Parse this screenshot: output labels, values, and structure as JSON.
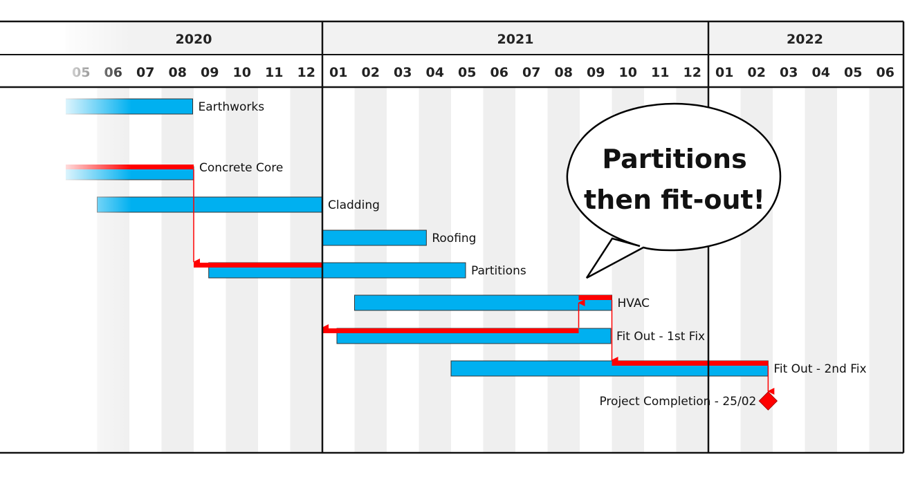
{
  "chart_data": {
    "type": "gantt",
    "years": [
      {
        "label": "2020",
        "start": "2020-05",
        "end": "2020-12"
      },
      {
        "label": "2021",
        "start": "2021-01",
        "end": "2021-12"
      },
      {
        "label": "2022",
        "start": "2022-01",
        "end": "2022-06"
      }
    ],
    "months": [
      "05",
      "06",
      "07",
      "08",
      "09",
      "10",
      "11",
      "12",
      "01",
      "02",
      "03",
      "04",
      "05",
      "06",
      "07",
      "08",
      "09",
      "10",
      "11",
      "12",
      "01",
      "02",
      "03",
      "04",
      "05",
      "06"
    ],
    "tasks": [
      {
        "name": "Earthworks",
        "start": "2020-04-15",
        "end": "2020-08-31"
      },
      {
        "name": "Concrete Core",
        "start": "2020-04-15",
        "end": "2020-09-01",
        "critical": true
      },
      {
        "name": "Cladding",
        "start": "2020-06-01",
        "end": "2021-01-01"
      },
      {
        "name": "Roofing",
        "start": "2021-01-01",
        "end": "2021-04-08"
      },
      {
        "name": "Partitions",
        "start": "2020-09-15",
        "end": "2021-05-15",
        "critical": true
      },
      {
        "name": "HVAC",
        "start": "2021-02-01",
        "end": "2021-10-01",
        "critical": true
      },
      {
        "name": "Fit Out - 1st Fix",
        "start": "2021-01-15",
        "end": "2021-09-30",
        "critical": true
      },
      {
        "name": "Fit Out - 2nd Fix",
        "start": "2021-05-01",
        "end": "2022-02-25",
        "critical": true
      }
    ],
    "critical_path": [
      {
        "task": "Concrete Core",
        "start": "2020-04-15",
        "end": "2020-09-01"
      },
      {
        "task": "Partitions",
        "start": "2020-09-01",
        "end": "2021-01-01"
      },
      {
        "task": "Fit Out - 1st Fix",
        "start": "2021-01-01",
        "end": "2021-08-31"
      },
      {
        "task": "HVAC",
        "start": "2021-08-31",
        "end": "2021-10-01"
      },
      {
        "task": "Fit Out - 2nd Fix",
        "start": "2021-10-01",
        "end": "2022-02-25"
      }
    ],
    "milestones": [
      {
        "name": "Project Completion - 25/02",
        "date": "2022-02-25"
      }
    ],
    "callout": {
      "lines": [
        "Partitions",
        "then fit-out!"
      ]
    },
    "colors": {
      "bar": "#00b0f0",
      "critical": "#ff0000",
      "milestone": "#ff0000",
      "stripe": "#efefef",
      "header_fill": "#f2f2f2"
    },
    "grid": true
  }
}
